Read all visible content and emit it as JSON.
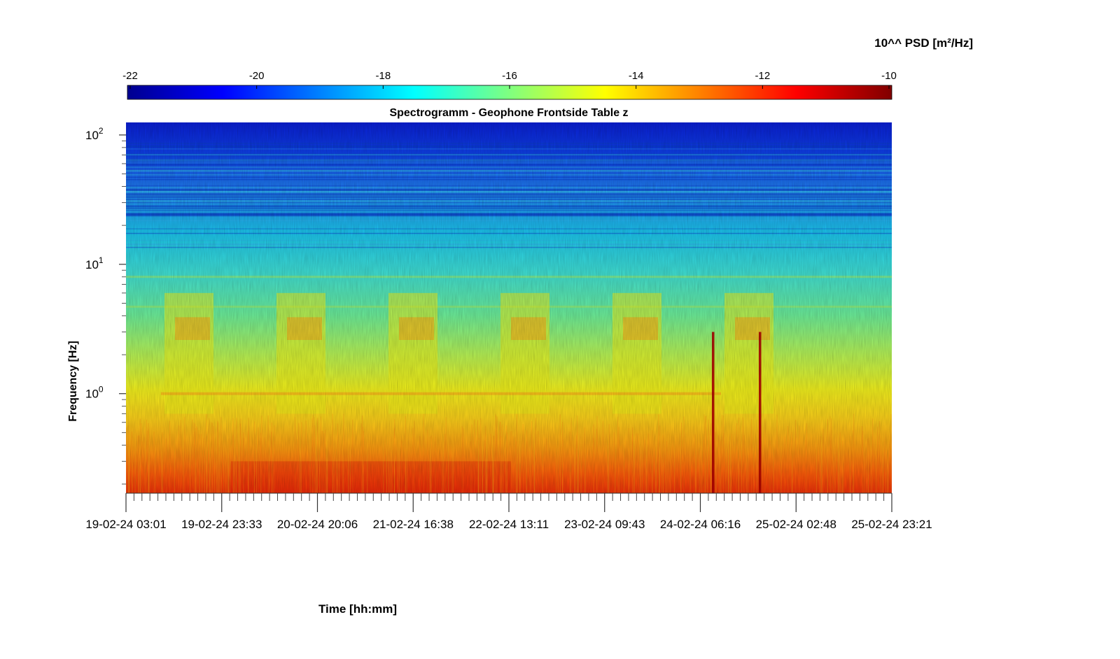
{
  "chart_data": {
    "type": "heatmap",
    "title": "Spectrogramm - Geophone Frontside Table z",
    "xlabel": "Time [hh:mm]",
    "ylabel": "Frequency [Hz]",
    "yscale": "log",
    "ylim": [
      0.17,
      125
    ],
    "colorbar": {
      "label": "10^^ PSD [m²/Hz]",
      "range": [
        -22,
        -10
      ],
      "ticks": [
        "-22",
        "-20",
        "-18",
        "-16",
        "-14",
        "-12",
        "-10"
      ],
      "colormap": "jet"
    },
    "x_ticks": [
      "19-02-24 03:01",
      "19-02-24 23:33",
      "20-02-24 20:06",
      "21-02-24 16:38",
      "22-02-24 13:11",
      "23-02-24 09:43",
      "24-02-24 06:16",
      "25-02-24 02:48",
      "25-02-24 23:21"
    ],
    "y_ticks": [
      {
        "base": "10",
        "exp": "2"
      },
      {
        "base": "10",
        "exp": "1"
      },
      {
        "base": "10",
        "exp": "0"
      }
    ],
    "features": {
      "daytime_activity_bursts_hz": [
        2,
        6
      ],
      "daytime_bursts_near": [
        "19-02-24",
        "20-02-24",
        "21-02-24",
        "22-02-24",
        "23-02-24",
        "24-02-24"
      ],
      "persistent_line_hz": 1.0,
      "low_frequency_band_hz": [
        0.17,
        0.7
      ],
      "transient_events_near": [
        "24-02-24 ~11:00",
        "24-02-24 ~23:00"
      ]
    }
  }
}
